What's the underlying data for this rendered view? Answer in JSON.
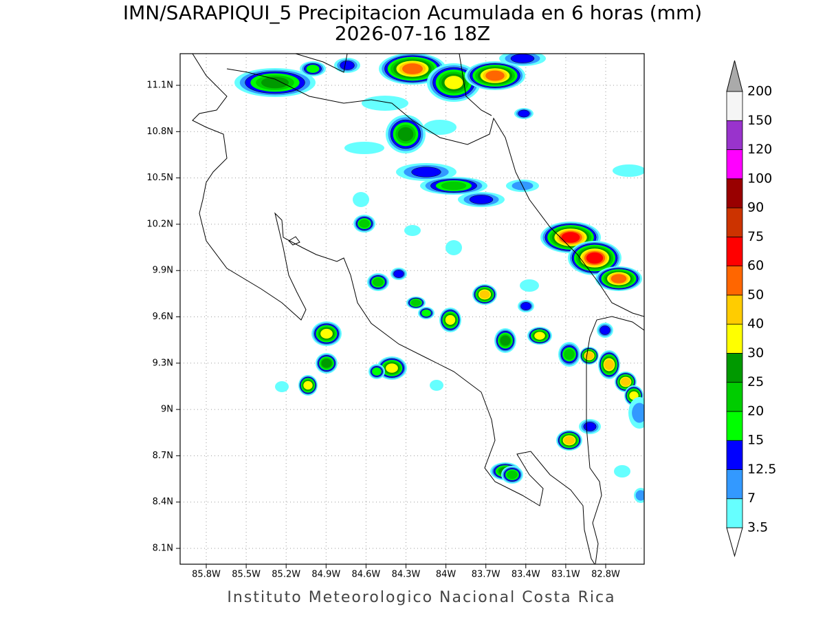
{
  "title": "IMN/SARAPIQUI_5 Precipitacion Acumulada en 6 horas (mm)",
  "subtitle": "2026-07-16 18Z",
  "map": {
    "x_ticks": [
      "85.8W",
      "85.5W",
      "85.2W",
      "84.9W",
      "84.6W",
      "84.3W",
      "84W",
      "83.7W",
      "83.4W",
      "83.1W",
      "82.8W"
    ],
    "y_ticks": [
      "11.1N",
      "10.8N",
      "10.5N",
      "10.2N",
      "9.9N",
      "9.6N",
      "9.3N",
      "9N",
      "8.7N",
      "8.4N",
      "8.1N"
    ]
  },
  "colorbar": {
    "levels": [
      3.5,
      7,
      12.5,
      15,
      20,
      25,
      30,
      40,
      50,
      60,
      75,
      90,
      100,
      120,
      150,
      200
    ],
    "colors": [
      "#66ffff",
      "#3399ff",
      "#0000ff",
      "#00ff00",
      "#00cc00",
      "#009900",
      "#ffff00",
      "#ffcc00",
      "#ff6600",
      "#ff0000",
      "#cc3300",
      "#990000",
      "#ff00ff",
      "#9933cc",
      "#f5f5f5"
    ],
    "over_color": "#aaaaaa",
    "under_color": "#ffffff"
  },
  "footer": "Instituto Meteorologico Nacional Costa Rica"
}
